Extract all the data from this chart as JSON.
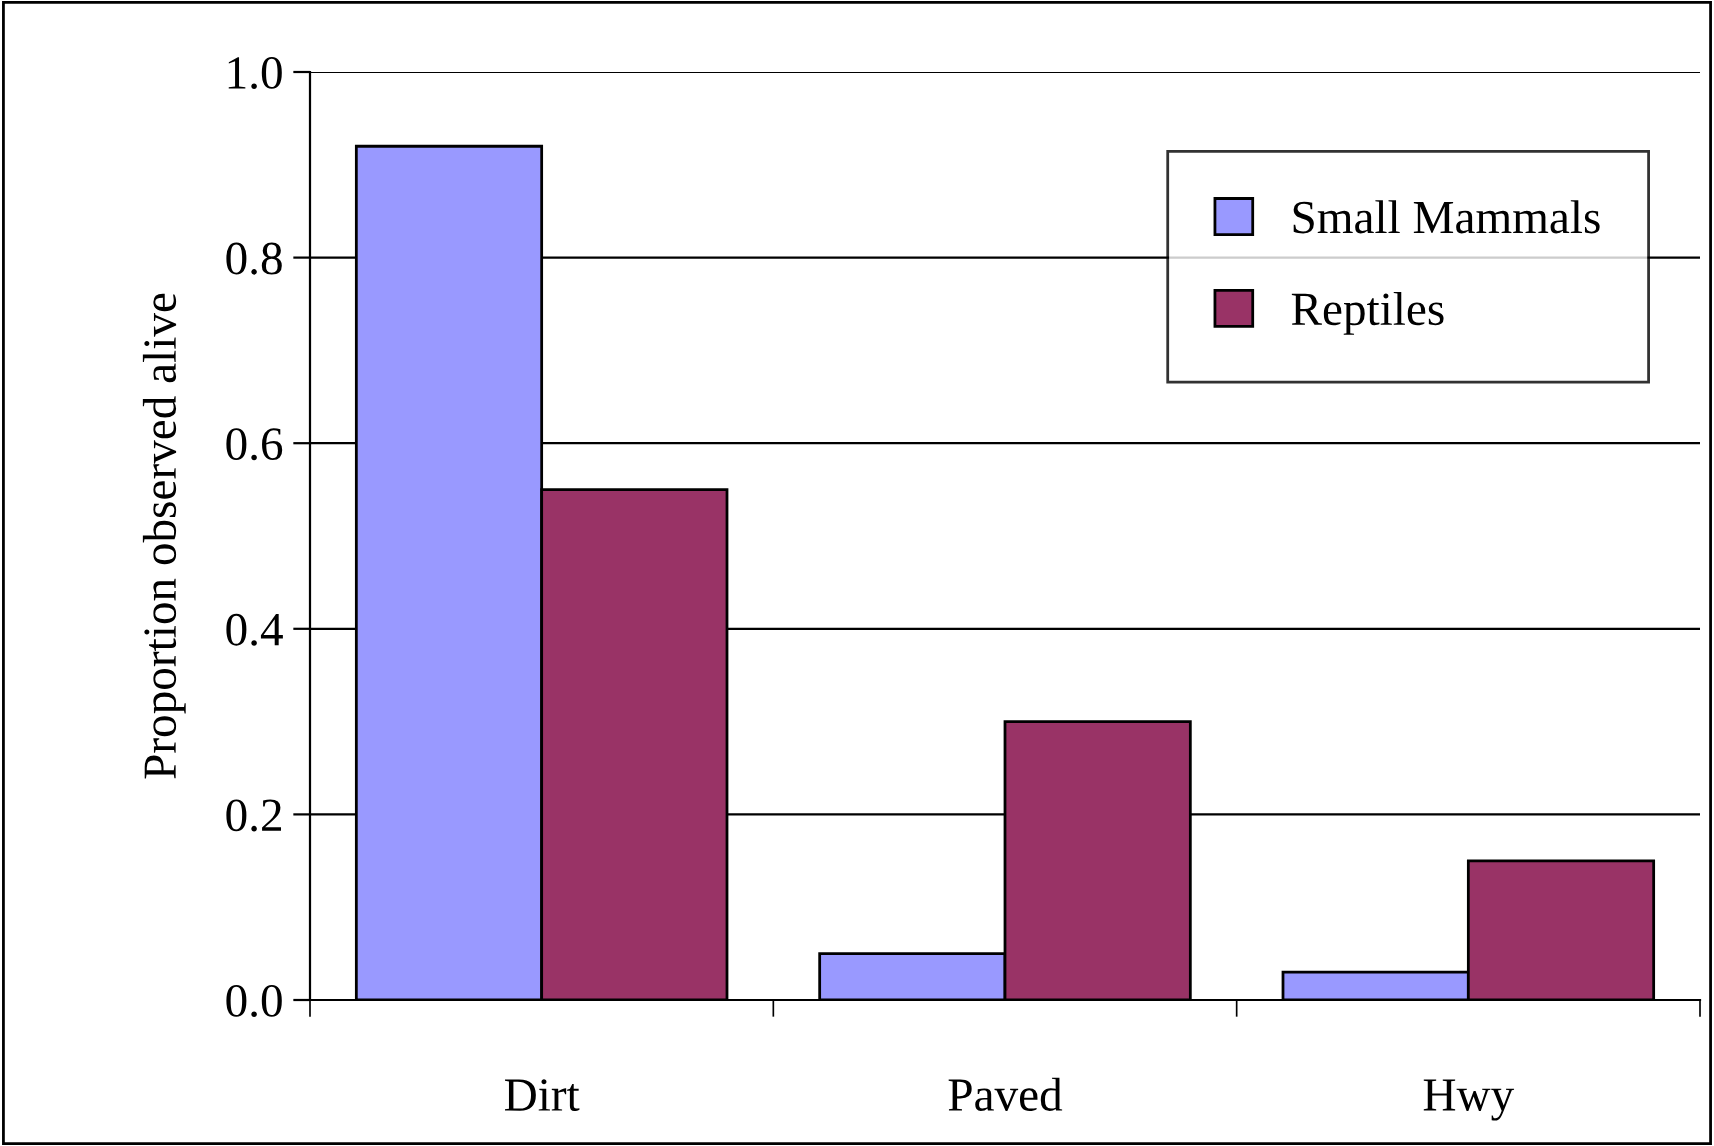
{
  "chart_data": {
    "type": "bar",
    "ylabel": "Proportion observed alive",
    "categories": [
      "Dirt",
      "Paved",
      "Hwy"
    ],
    "series": [
      {
        "name": "Small Mammals",
        "color": "#9999ff",
        "values": [
          0.92,
          0.05,
          0.03
        ]
      },
      {
        "name": "Reptiles",
        "color": "#993366",
        "values": [
          0.55,
          0.3,
          0.15
        ]
      }
    ],
    "ylim": [
      0,
      1
    ],
    "yticks": [
      {
        "value": 0,
        "label": "0.0"
      },
      {
        "value": 0.2,
        "label": "0.2"
      },
      {
        "value": 0.4,
        "label": "0.4"
      },
      {
        "value": 0.6,
        "label": "0.6"
      },
      {
        "value": 0.8,
        "label": "0.8"
      },
      {
        "value": 1,
        "label": "1.0"
      }
    ],
    "grid": "y",
    "legend": "top right"
  }
}
